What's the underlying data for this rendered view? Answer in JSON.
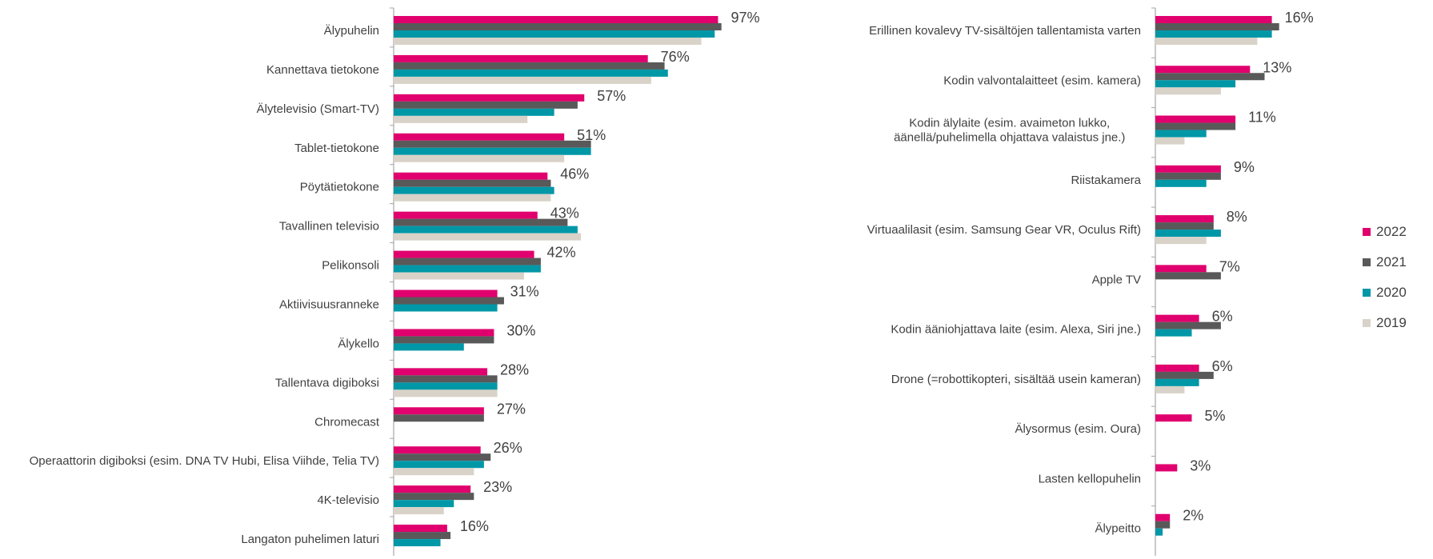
{
  "chart_data": [
    {
      "type": "bar",
      "orientation": "horizontal",
      "categories": [
        "Älypuhelin",
        "Kannettava tietokone",
        "Älytelevisio (Smart-TV)",
        "Tablet-tietokone",
        "Pöytätietokone",
        "Tavallinen televisio",
        "Pelikonsoli",
        "Aktiivisuusranneke",
        "Älykello",
        "Tallentava digiboksi",
        "Chromecast",
        "Operaattorin digiboksi (esim. DNA TV Hubi,  Elisa Viihde, Telia TV)",
        "4K-televisio",
        "Langaton puhelimen laturi"
      ],
      "series": [
        {
          "name": "2022",
          "values": [
            97,
            76,
            57,
            51,
            46,
            43,
            42,
            31,
            30,
            28,
            27,
            26,
            23,
            16
          ]
        },
        {
          "name": "2021",
          "values": [
            98,
            81,
            55,
            59,
            47,
            52,
            44,
            33,
            30,
            31,
            27,
            29,
            24,
            17
          ]
        },
        {
          "name": "2020",
          "values": [
            96,
            82,
            48,
            59,
            48,
            55,
            44,
            31,
            21,
            31,
            null,
            27,
            18,
            14
          ]
        },
        {
          "name": "2019",
          "values": [
            92,
            77,
            40,
            51,
            47,
            56,
            39,
            null,
            null,
            31,
            null,
            24,
            15,
            null
          ]
        }
      ],
      "data_labels": [
        "97%",
        "76%",
        "57%",
        "51%",
        "46%",
        "43%",
        "42%",
        "31%",
        "30%",
        "28%",
        "27%",
        "26%",
        "23%",
        "16%"
      ],
      "xlim": [
        0,
        100
      ],
      "title": "",
      "xlabel": "",
      "ylabel": ""
    },
    {
      "type": "bar",
      "orientation": "horizontal",
      "categories": [
        "Erillinen kovalevy TV-sisältöjen tallentamista varten",
        "Kodin valvontalaitteet (esim. kamera)",
        "Kodin älylaite (esim. avaimeton lukko, äänellä/puhelimella ohjattava valaistus jne.)",
        "Riistakamera",
        "Virtuaalilasit (esim. Samsung Gear VR, Oculus Rift)",
        "Apple TV",
        "Kodin ääniohjattava laite (esim. Alexa, Siri jne.)",
        "Drone (=robottikopteri, sisältää usein kameran)",
        "Älysormus (esim. Oura)",
        "Lasten kellopuhelin",
        "Älypeitto"
      ],
      "series": [
        {
          "name": "2022",
          "values": [
            16,
            13,
            11,
            9,
            8,
            7,
            6,
            6,
            5,
            3,
            2
          ]
        },
        {
          "name": "2021",
          "values": [
            17,
            15,
            11,
            9,
            8,
            9,
            9,
            8,
            null,
            null,
            2
          ]
        },
        {
          "name": "2020",
          "values": [
            16,
            11,
            7,
            7,
            9,
            null,
            5,
            6,
            null,
            null,
            1
          ]
        },
        {
          "name": "2019",
          "values": [
            14,
            9,
            4,
            null,
            7,
            null,
            null,
            4,
            null,
            null,
            null
          ]
        }
      ],
      "data_labels": [
        "16%",
        "13%",
        "11%",
        "9%",
        "8%",
        "7%",
        "6%",
        "6%",
        "5%",
        "3%",
        "2%"
      ],
      "xlim": [
        0,
        100
      ],
      "title": "",
      "xlabel": "",
      "ylabel": ""
    }
  ],
  "legend": {
    "position": "right",
    "items": [
      {
        "label": "2022",
        "color": "#e0006e"
      },
      {
        "label": "2021",
        "color": "#595959"
      },
      {
        "label": "2020",
        "color": "#0097a7"
      },
      {
        "label": "2019",
        "color": "#d9d2c8"
      }
    ]
  },
  "colors": {
    "2022": "#e0006e",
    "2021": "#595959",
    "2020": "#0097a7",
    "2019": "#d9d2c8",
    "axis": "#a6a6a6",
    "text": "#404040"
  }
}
